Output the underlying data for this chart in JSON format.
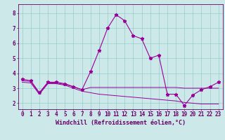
{
  "xlabel": "Windchill (Refroidissement éolien,°C)",
  "background_color": "#cce8e8",
  "grid_color": "#99cccc",
  "line_color": "#990099",
  "spine_color": "#660066",
  "xlim_min": -0.5,
  "xlim_max": 23.5,
  "ylim_min": 1.6,
  "ylim_max": 8.6,
  "yticks": [
    2,
    3,
    4,
    5,
    6,
    7,
    8
  ],
  "xticks": [
    0,
    1,
    2,
    3,
    4,
    5,
    6,
    7,
    8,
    9,
    10,
    11,
    12,
    13,
    14,
    15,
    16,
    17,
    18,
    19,
    20,
    21,
    22,
    23
  ],
  "series1_x": [
    0,
    1,
    2,
    3,
    4,
    5,
    6,
    7,
    8,
    9,
    10,
    11,
    12,
    13,
    14,
    15,
    16,
    17,
    18,
    19,
    20,
    21,
    22,
    23
  ],
  "series1_y": [
    3.6,
    3.5,
    2.7,
    3.4,
    3.4,
    3.3,
    3.1,
    2.9,
    4.1,
    5.5,
    7.0,
    7.9,
    7.5,
    6.5,
    6.3,
    5.0,
    5.2,
    2.6,
    2.6,
    1.85,
    2.55,
    2.9,
    3.1,
    3.4
  ],
  "series2_x": [
    0,
    1,
    2,
    3,
    4,
    5,
    6,
    7,
    8,
    9,
    10,
    11,
    12,
    13,
    14,
    15,
    16,
    17,
    18,
    19,
    20,
    21,
    22,
    23
  ],
  "series2_y": [
    3.5,
    3.45,
    2.65,
    3.35,
    3.35,
    3.25,
    3.1,
    2.9,
    3.05,
    3.05,
    3.05,
    3.05,
    3.05,
    3.05,
    3.05,
    3.05,
    3.05,
    3.05,
    3.05,
    3.0,
    3.0,
    3.0,
    3.0,
    3.0
  ],
  "series3_x": [
    0,
    1,
    2,
    3,
    4,
    5,
    6,
    7,
    8,
    9,
    10,
    11,
    12,
    13,
    14,
    15,
    16,
    17,
    18,
    19,
    20,
    21,
    22,
    23
  ],
  "series3_y": [
    3.4,
    3.35,
    2.6,
    3.3,
    3.3,
    3.2,
    3.0,
    2.8,
    2.7,
    2.6,
    2.55,
    2.5,
    2.45,
    2.4,
    2.35,
    2.3,
    2.25,
    2.2,
    2.15,
    2.05,
    2.0,
    1.95,
    1.95,
    1.95
  ],
  "tick_fontsize": 5.5,
  "xlabel_fontsize": 6.0
}
